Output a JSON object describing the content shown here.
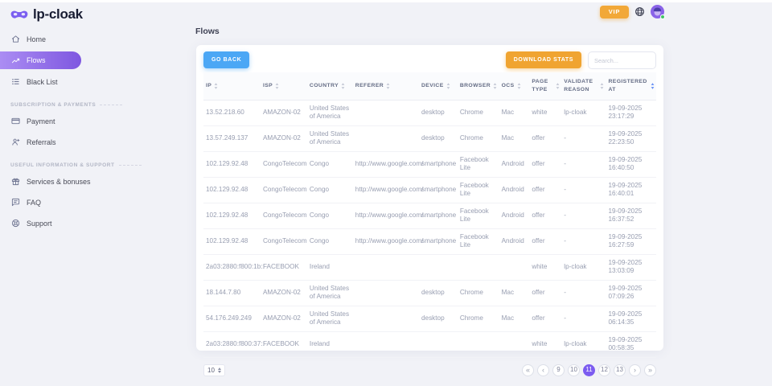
{
  "topbar": {
    "logo_text": "lp-cloak",
    "vip_label": "VIP"
  },
  "sidebar": {
    "sections": [
      {
        "label": "",
        "items": [
          {
            "label": "Home",
            "active": false
          },
          {
            "label": "Flows",
            "active": true
          },
          {
            "label": "Black List",
            "active": false
          }
        ]
      },
      {
        "label": "SUBSCRIPTION & PAYMENTS",
        "items": [
          {
            "label": "Payment",
            "active": false
          },
          {
            "label": "Referrals",
            "active": false
          }
        ]
      },
      {
        "label": "USEFUL INFORMATION & SUPPORT",
        "items": [
          {
            "label": "Services & bonuses",
            "active": false
          },
          {
            "label": "FAQ",
            "active": false
          },
          {
            "label": "Support",
            "active": false
          }
        ]
      }
    ]
  },
  "page": {
    "title": "Flows"
  },
  "toolbar": {
    "go_back_label": "GO BACK",
    "download_label": "DOWNLOAD STATS",
    "search_placeholder": "Search..."
  },
  "table": {
    "columns": [
      {
        "label": "IP",
        "sorted": false
      },
      {
        "label": "ISP",
        "sorted": false
      },
      {
        "label": "COUNTRY",
        "sorted": false
      },
      {
        "label": "REFERER",
        "sorted": false
      },
      {
        "label": "DEVICE",
        "sorted": false
      },
      {
        "label": "BROWSER",
        "sorted": false
      },
      {
        "label": "OCS",
        "sorted": false
      },
      {
        "label": "PAGE TYPE",
        "sorted": false
      },
      {
        "label": "VALIDATE REASON",
        "sorted": false
      },
      {
        "label": "REGISTERED AT",
        "sorted": true
      }
    ],
    "rows": [
      [
        "13.52.218.60",
        "AMAZON-02",
        "United States of America",
        "",
        "desktop",
        "Chrome",
        "Mac",
        "white",
        "lp-cloak",
        "19-09-2025\n23:17:29"
      ],
      [
        "13.57.249.137",
        "AMAZON-02",
        "United States of America",
        "",
        "desktop",
        "Chrome",
        "Mac",
        "offer",
        "-",
        "19-09-2025\n22:23:50"
      ],
      [
        "102.129.92.48",
        "CongoTelecom",
        "Congo",
        "http://www.google.com/",
        "smartphone",
        "Facebook Lite",
        "Android",
        "offer",
        "-",
        "19-09-2025\n16:40:50"
      ],
      [
        "102.129.92.48",
        "CongoTelecom",
        "Congo",
        "http://www.google.com/",
        "smartphone",
        "Facebook Lite",
        "Android",
        "offer",
        "-",
        "19-09-2025\n16:40:01"
      ],
      [
        "102.129.92.48",
        "CongoTelecom",
        "Congo",
        "http://www.google.com/",
        "smartphone",
        "Facebook Lite",
        "Android",
        "offer",
        "-",
        "19-09-2025\n16:37:52"
      ],
      [
        "102.129.92.48",
        "CongoTelecom",
        "Congo",
        "http://www.google.com/",
        "smartphone",
        "Facebook Lite",
        "Android",
        "offer",
        "-",
        "19-09-2025\n16:27:59"
      ],
      [
        "2a03:2880:f800:1b::",
        "FACEBOOK",
        "Ireland",
        "",
        "",
        "",
        "",
        "white",
        "lp-cloak",
        "19-09-2025\n13:03:09"
      ],
      [
        "18.144.7.80",
        "AMAZON-02",
        "United States of America",
        "",
        "desktop",
        "Chrome",
        "Mac",
        "offer",
        "-",
        "19-09-2025\n07:09:26"
      ],
      [
        "54.176.249.249",
        "AMAZON-02",
        "United States of America",
        "",
        "desktop",
        "Chrome",
        "Mac",
        "offer",
        "-",
        "19-09-2025\n06:14:35"
      ],
      [
        "2a03:2880:f800:37::",
        "FACEBOOK",
        "Ireland",
        "",
        "",
        "",
        "",
        "white",
        "lp-cloak",
        "19-09-2025\n00:58:35"
      ]
    ]
  },
  "pagination": {
    "page_size": "10",
    "items": [
      {
        "label": "«",
        "kind": "first",
        "active": false
      },
      {
        "label": "‹",
        "kind": "prev",
        "active": false
      },
      {
        "label": "9",
        "kind": "page",
        "active": false
      },
      {
        "label": "10",
        "kind": "page",
        "active": false
      },
      {
        "label": "11",
        "kind": "page",
        "active": true
      },
      {
        "label": "12",
        "kind": "page",
        "active": false
      },
      {
        "label": "13",
        "kind": "page",
        "active": false
      },
      {
        "label": "›",
        "kind": "next",
        "active": false
      },
      {
        "label": "»",
        "kind": "last",
        "active": false
      }
    ]
  },
  "colors": {
    "accent_purple": "#7c5cf0",
    "button_blue": "#4ba7f5",
    "button_amber": "#f0a431",
    "vip_amber": "#f2a838",
    "online_green": "#43c465",
    "background": "#f1f2f7",
    "sorted_arrow": "#5f8bf5"
  }
}
